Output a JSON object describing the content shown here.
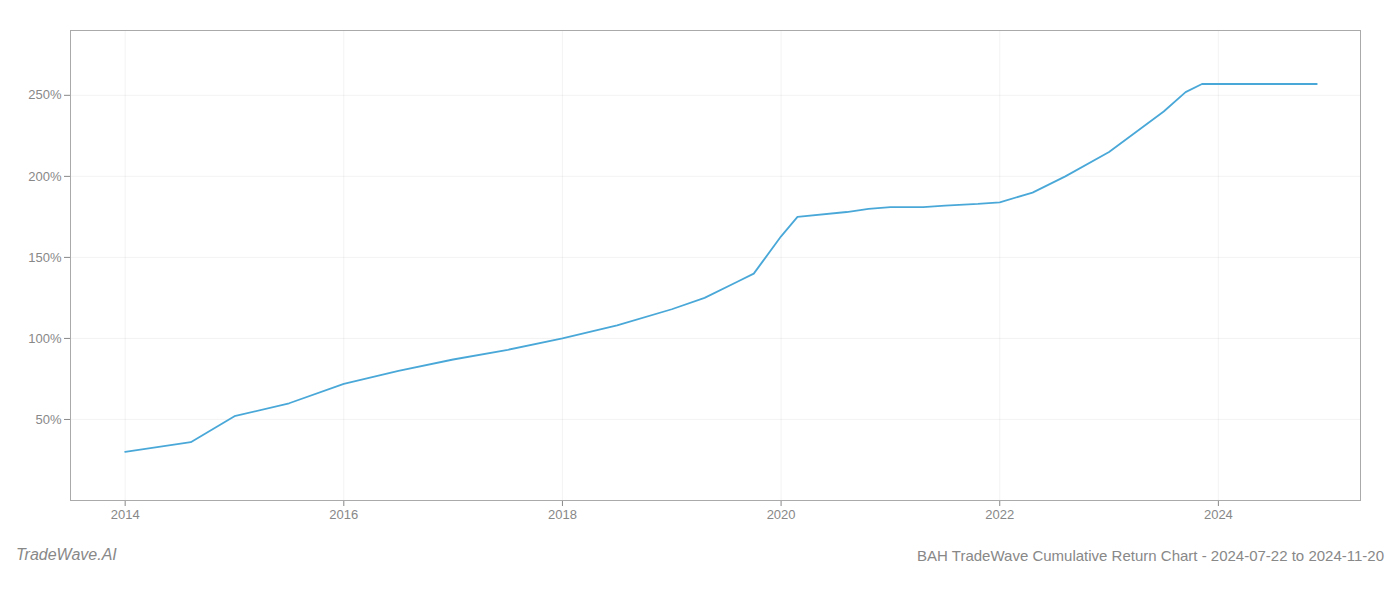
{
  "chart_data": {
    "type": "line",
    "title": "BAH TradeWave Cumulative Return Chart - 2024-07-22 to 2024-11-20",
    "annotations": [
      "TradeWave.AI"
    ],
    "x": [
      2014.0,
      2014.6,
      2015.0,
      2015.5,
      2016.0,
      2016.5,
      2017.0,
      2017.5,
      2018.0,
      2018.5,
      2019.0,
      2019.3,
      2019.6,
      2019.75,
      2020.0,
      2020.15,
      2020.6,
      2020.8,
      2021.0,
      2021.3,
      2021.5,
      2021.8,
      2022.0,
      2022.3,
      2022.6,
      2023.0,
      2023.5,
      2023.7,
      2023.85,
      2024.0,
      2024.5,
      2024.9
    ],
    "values": [
      30,
      36,
      52,
      60,
      72,
      80,
      87,
      93,
      100,
      108,
      118,
      125,
      135,
      140,
      163,
      175,
      178,
      180,
      181,
      181,
      182,
      183,
      184,
      190,
      200,
      215,
      240,
      252,
      257,
      257,
      257,
      257
    ],
    "color": "#4aa8d8",
    "xlim": [
      2013.5,
      2025.3
    ],
    "ylim": [
      0,
      290
    ],
    "xticks": [
      2014,
      2016,
      2018,
      2020,
      2022,
      2024
    ],
    "yticks": [
      {
        "value": 50,
        "label": "50%"
      },
      {
        "value": 100,
        "label": "100%"
      },
      {
        "value": 150,
        "label": "150%"
      },
      {
        "value": 200,
        "label": "200%"
      },
      {
        "value": 250,
        "label": "250%"
      }
    ],
    "grid": true
  }
}
